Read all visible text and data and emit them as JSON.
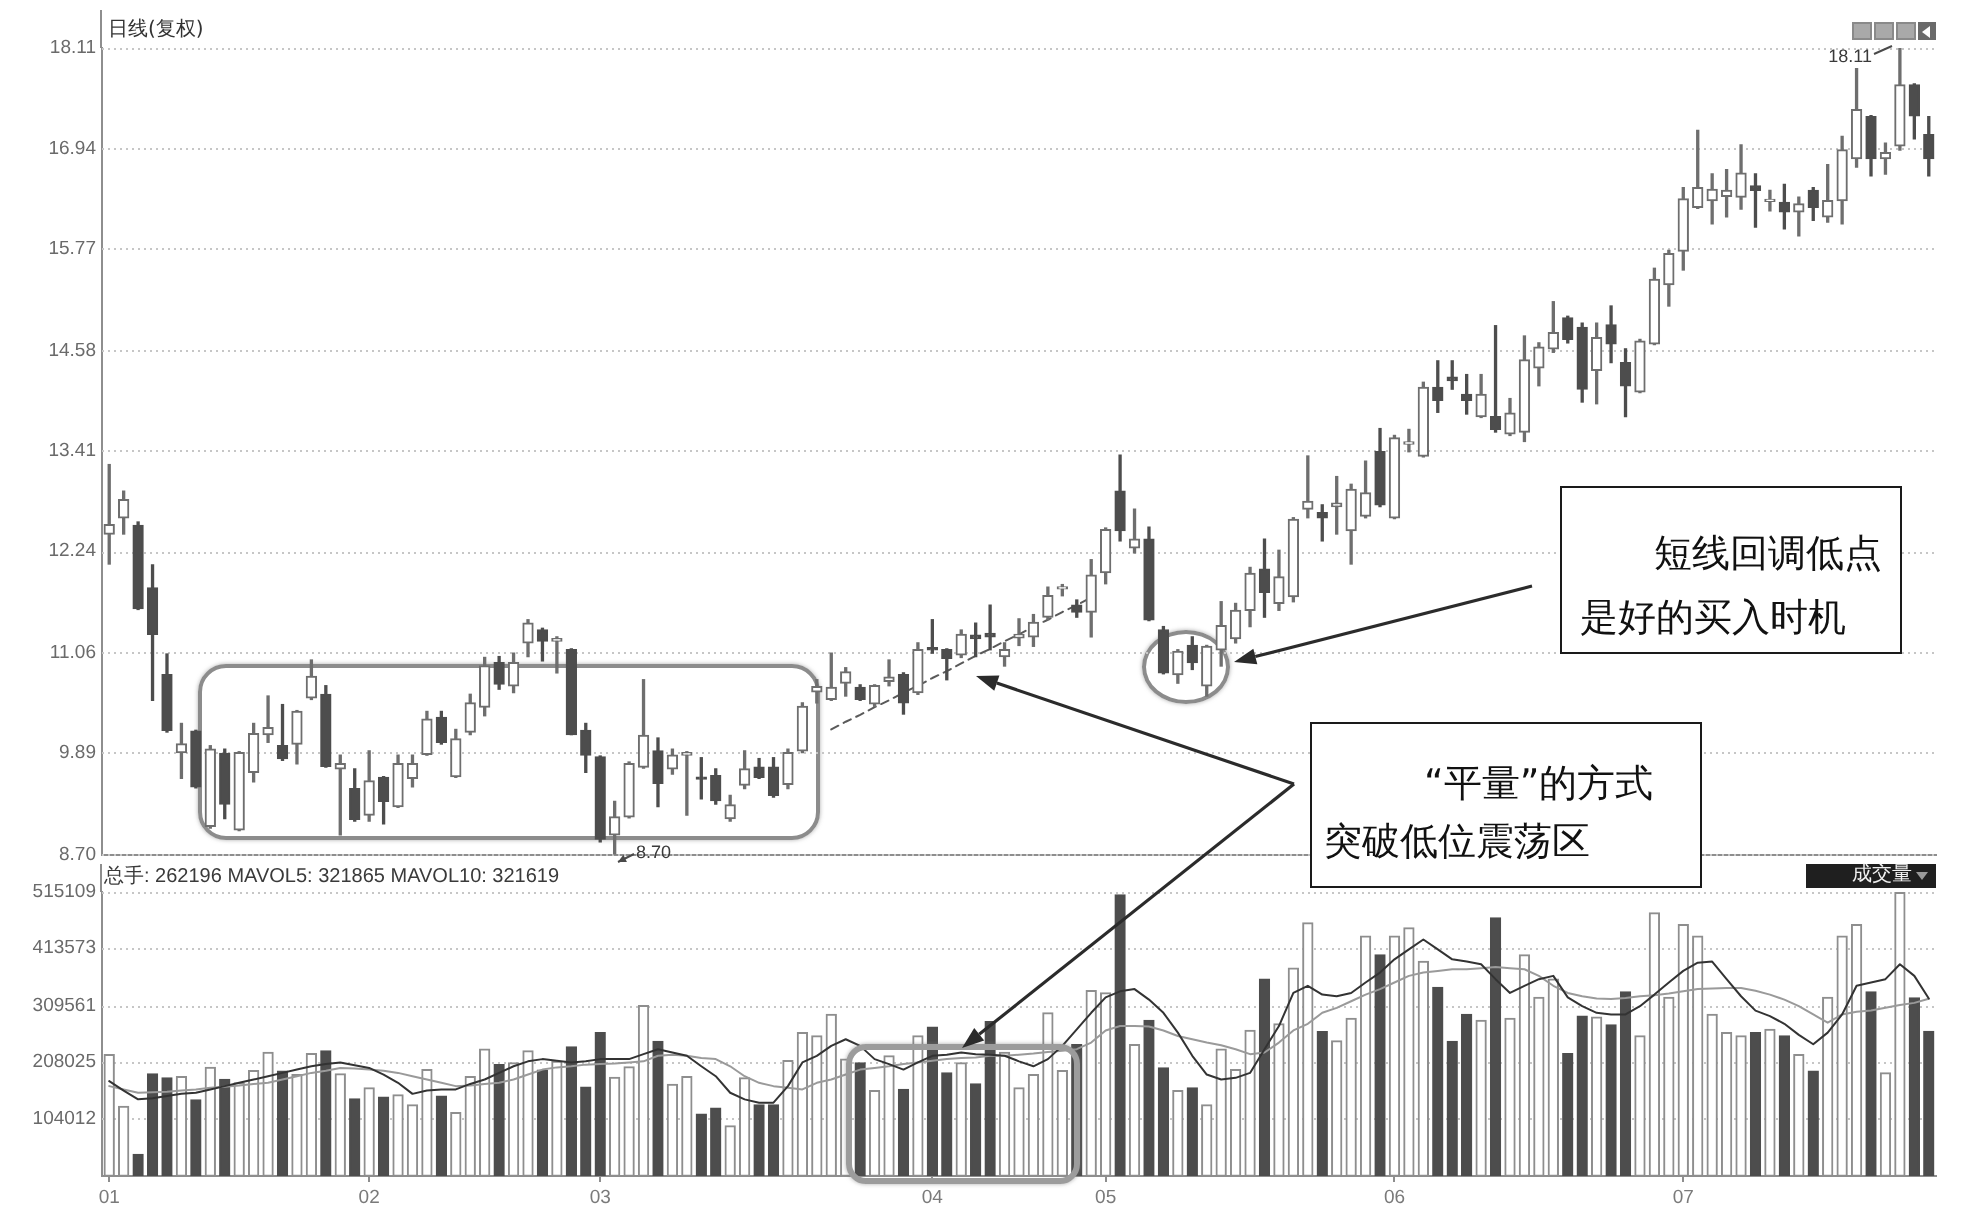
{
  "chart_data": [
    {
      "type": "candlestick",
      "title": "日线(复权)",
      "categories": [
        "01",
        null,
        null,
        null,
        null,
        null,
        null,
        null,
        null,
        null,
        null,
        null,
        null,
        null,
        null,
        null,
        null,
        null,
        "02",
        null,
        null,
        null,
        null,
        null,
        null,
        null,
        null,
        null,
        null,
        null,
        null,
        null,
        null,
        null,
        "03",
        null,
        null,
        null,
        null,
        null,
        null,
        null,
        null,
        null,
        null,
        null,
        null,
        null,
        null,
        null,
        null,
        null,
        null,
        null,
        null,
        null,
        null,
        "04",
        null,
        null,
        null,
        null,
        null,
        null,
        null,
        null,
        null,
        null,
        null,
        "05",
        null,
        null,
        null,
        null,
        null,
        null,
        null,
        null,
        null,
        null,
        null,
        null,
        null,
        null,
        null,
        null,
        null,
        null,
        null,
        "06",
        null,
        null,
        null,
        null,
        null,
        null,
        null,
        null,
        null,
        null,
        null,
        null,
        null,
        null,
        null,
        null,
        null,
        null,
        null,
        "07",
        null,
        null,
        null,
        null,
        null,
        null,
        null,
        null,
        null,
        null,
        null,
        null,
        null,
        null,
        null,
        null,
        null
      ],
      "ohlc": [
        [
          12.44,
          13.25,
          12.09,
          12.55
        ],
        [
          12.63,
          12.94,
          12.44,
          12.84
        ],
        [
          12.54,
          12.58,
          11.56,
          11.57
        ],
        [
          11.81,
          12.08,
          10.5,
          11.27
        ],
        [
          10.8,
          11.04,
          10.13,
          10.15
        ],
        [
          9.89,
          10.23,
          9.59,
          9.99
        ],
        [
          10.14,
          10.15,
          9.48,
          9.49
        ],
        [
          9.03,
          9.97,
          9.01,
          9.93
        ],
        [
          9.88,
          9.93,
          9.12,
          9.29
        ],
        [
          8.99,
          9.9,
          8.98,
          9.89
        ],
        [
          9.66,
          10.23,
          9.55,
          10.11
        ],
        [
          10.1,
          10.55,
          10.01,
          10.18
        ],
        [
          9.97,
          10.45,
          9.8,
          9.82
        ],
        [
          9.99,
          10.38,
          9.76,
          10.37
        ],
        [
          10.53,
          10.97,
          10.51,
          10.78
        ],
        [
          10.57,
          10.67,
          9.72,
          9.73
        ],
        [
          9.7,
          9.86,
          8.93,
          9.76
        ],
        [
          9.47,
          9.7,
          9.09,
          9.11
        ],
        [
          9.16,
          9.91,
          9.09,
          9.56
        ],
        [
          9.6,
          9.61,
          9.06,
          9.32
        ],
        [
          9.26,
          9.86,
          9.25,
          9.76
        ],
        [
          9.59,
          9.86,
          9.49,
          9.76
        ],
        [
          9.87,
          10.37,
          9.86,
          10.28
        ],
        [
          10.3,
          10.37,
          9.99,
          10.01
        ],
        [
          9.61,
          10.16,
          9.6,
          10.05
        ],
        [
          10.13,
          10.57,
          10.1,
          10.47
        ],
        [
          10.42,
          11.0,
          10.32,
          10.9
        ],
        [
          10.94,
          11.01,
          10.63,
          10.69
        ],
        [
          10.67,
          11.05,
          10.59,
          10.94
        ],
        [
          11.17,
          11.44,
          11.01,
          11.4
        ],
        [
          11.32,
          11.34,
          10.96,
          11.19
        ],
        [
          11.19,
          11.24,
          10.82,
          11.22
        ],
        [
          11.09,
          11.1,
          10.1,
          10.1
        ],
        [
          10.15,
          10.23,
          9.66,
          9.86
        ],
        [
          9.84,
          9.85,
          8.85,
          8.88
        ],
        [
          8.93,
          9.32,
          8.7,
          9.14
        ],
        [
          9.14,
          9.78,
          9.13,
          9.76
        ],
        [
          9.72,
          10.74,
          9.71,
          10.09
        ],
        [
          9.91,
          10.06,
          9.26,
          9.53
        ],
        [
          9.7,
          9.93,
          9.64,
          9.86
        ],
        [
          9.86,
          9.9,
          9.16,
          9.89
        ],
        [
          9.6,
          9.83,
          9.35,
          9.58
        ],
        [
          9.62,
          9.7,
          9.29,
          9.33
        ],
        [
          9.12,
          9.39,
          9.09,
          9.28
        ],
        [
          9.51,
          9.91,
          9.47,
          9.7
        ],
        [
          9.72,
          9.82,
          9.59,
          9.6
        ],
        [
          9.72,
          9.83,
          9.37,
          9.39
        ],
        [
          9.52,
          9.93,
          9.47,
          9.89
        ],
        [
          9.91,
          10.47,
          9.89,
          10.43
        ],
        [
          10.6,
          10.74,
          10.47,
          10.66
        ],
        [
          10.51,
          11.05,
          10.5,
          10.65
        ],
        [
          10.7,
          10.88,
          10.55,
          10.83
        ],
        [
          10.65,
          10.68,
          10.5,
          10.51
        ],
        [
          10.46,
          10.68,
          10.43,
          10.67
        ],
        [
          10.72,
          10.97,
          10.67,
          10.77
        ],
        [
          10.8,
          10.82,
          10.34,
          10.47
        ],
        [
          10.59,
          11.17,
          10.57,
          11.09
        ],
        [
          11.1,
          11.44,
          11.05,
          11.09
        ],
        [
          11.09,
          11.1,
          10.74,
          10.99
        ],
        [
          11.03,
          11.32,
          11.0,
          11.27
        ],
        [
          11.26,
          11.4,
          11.01,
          11.22
        ],
        [
          11.28,
          11.61,
          11.09,
          11.24
        ],
        [
          11.01,
          11.17,
          10.9,
          11.09
        ],
        [
          11.23,
          11.45,
          11.14,
          11.27
        ],
        [
          11.24,
          11.5,
          11.13,
          11.41
        ],
        [
          11.47,
          11.82,
          11.44,
          11.72
        ],
        [
          11.8,
          11.85,
          11.72,
          11.82
        ],
        [
          11.61,
          11.67,
          11.47,
          11.53
        ],
        [
          11.53,
          12.14,
          11.24,
          11.96
        ],
        [
          11.99,
          12.51,
          11.86,
          12.49
        ],
        [
          12.94,
          13.36,
          12.36,
          12.48
        ],
        [
          12.28,
          12.73,
          12.22,
          12.38
        ],
        [
          12.38,
          12.52,
          11.43,
          11.44
        ],
        [
          11.32,
          11.36,
          10.81,
          10.82
        ],
        [
          10.8,
          11.09,
          10.7,
          11.07
        ],
        [
          11.14,
          11.24,
          10.86,
          10.94
        ],
        [
          10.67,
          11.14,
          10.55,
          11.13
        ],
        [
          11.09,
          11.65,
          10.9,
          11.37
        ],
        [
          11.22,
          11.63,
          11.17,
          11.55
        ],
        [
          11.55,
          12.05,
          11.36,
          11.98
        ],
        [
          12.03,
          12.38,
          11.47,
          11.76
        ],
        [
          11.63,
          12.25,
          11.55,
          11.94
        ],
        [
          11.71,
          12.63,
          11.65,
          12.61
        ],
        [
          12.73,
          13.35,
          12.63,
          12.82
        ],
        [
          12.69,
          12.78,
          12.36,
          12.63
        ],
        [
          12.76,
          13.11,
          12.44,
          12.8
        ],
        [
          12.48,
          13.02,
          12.09,
          12.96
        ],
        [
          12.65,
          13.29,
          12.63,
          12.92
        ],
        [
          13.4,
          13.67,
          12.76,
          12.78
        ],
        [
          12.63,
          13.59,
          12.62,
          13.56
        ],
        [
          13.49,
          13.66,
          13.4,
          13.51
        ],
        [
          13.35,
          14.21,
          13.34,
          14.15
        ],
        [
          14.15,
          14.46,
          13.86,
          14.0
        ],
        [
          14.27,
          14.46,
          14.13,
          14.23
        ],
        [
          14.07,
          14.3,
          13.84,
          14.0
        ],
        [
          13.81,
          14.3,
          13.8,
          14.07
        ],
        [
          13.81,
          14.87,
          13.63,
          13.66
        ],
        [
          13.61,
          14.02,
          13.59,
          13.85
        ],
        [
          13.63,
          14.75,
          13.52,
          14.47
        ],
        [
          14.38,
          14.67,
          14.17,
          14.62
        ],
        [
          14.6,
          15.15,
          14.56,
          14.79
        ],
        [
          14.96,
          14.98,
          14.67,
          14.71
        ],
        [
          14.85,
          14.9,
          13.98,
          14.13
        ],
        [
          14.35,
          14.9,
          13.96,
          14.73
        ],
        [
          14.88,
          15.1,
          14.44,
          14.66
        ],
        [
          14.44,
          14.6,
          13.81,
          14.17
        ],
        [
          14.1,
          14.71,
          14.09,
          14.69
        ],
        [
          14.66,
          15.54,
          14.65,
          15.41
        ],
        [
          15.35,
          15.75,
          15.1,
          15.71
        ],
        [
          15.74,
          16.48,
          15.52,
          16.35
        ],
        [
          16.25,
          17.15,
          16.24,
          16.48
        ],
        [
          16.33,
          16.64,
          16.06,
          16.46
        ],
        [
          16.38,
          16.69,
          16.14,
          16.45
        ],
        [
          16.37,
          16.98,
          16.23,
          16.65
        ],
        [
          16.5,
          16.64,
          16.02,
          16.45
        ],
        [
          16.32,
          16.45,
          16.21,
          16.34
        ],
        [
          16.31,
          16.52,
          16.0,
          16.2
        ],
        [
          16.2,
          16.37,
          15.92,
          16.29
        ],
        [
          16.45,
          16.48,
          16.1,
          16.25
        ],
        [
          16.14,
          16.75,
          16.08,
          16.33
        ],
        [
          16.33,
          17.08,
          16.06,
          16.92
        ],
        [
          16.82,
          17.87,
          16.72,
          17.39
        ],
        [
          17.31,
          17.32,
          16.62,
          16.82
        ],
        [
          16.82,
          17.0,
          16.64,
          16.89
        ],
        [
          16.97,
          18.11,
          16.92,
          17.68
        ],
        [
          17.68,
          17.69,
          17.05,
          17.32
        ],
        [
          17.1,
          17.31,
          16.62,
          16.82
        ]
      ],
      "series": [
        {
          "type": "line",
          "line_style": "dashed",
          "color": "#5a5a5a",
          "values": [
            null,
            null,
            null,
            null,
            null,
            null,
            null,
            null,
            null,
            null,
            null,
            null,
            null,
            null,
            null,
            null,
            null,
            null,
            null,
            null,
            null,
            null,
            null,
            null,
            null,
            null,
            null,
            null,
            null,
            null,
            null,
            null,
            null,
            null,
            null,
            null,
            null,
            null,
            null,
            null,
            null,
            null,
            null,
            null,
            null,
            null,
            null,
            null,
            null,
            null,
            10.16,
            10.25,
            10.33,
            10.42,
            10.5,
            10.59,
            10.67,
            10.76,
            10.84,
            10.93,
            11.02,
            11.1,
            11.19,
            11.27,
            11.36,
            11.44,
            11.53,
            11.61,
            11.7,
            null,
            null,
            null,
            null,
            null,
            null,
            null,
            null,
            null,
            null,
            null,
            null,
            null,
            null,
            null,
            null,
            null,
            null,
            null,
            null,
            null,
            null,
            null,
            null,
            null,
            null,
            null,
            null,
            null,
            null,
            null,
            null,
            null,
            null,
            null,
            null,
            null,
            null,
            null,
            null,
            null,
            null,
            null,
            null,
            null,
            null,
            null,
            null,
            null,
            null,
            null,
            null,
            null,
            null,
            null,
            null,
            null,
            null
          ]
        }
      ],
      "ylim": [
        8.7,
        18.11
      ],
      "yticks": [
        {
          "value": 8.7,
          "label": "8.70"
        },
        9.89,
        11.06,
        12.24,
        13.41,
        14.58,
        15.77,
        16.94,
        18.11
      ],
      "grid": "y",
      "tick_labels": "y",
      "annotations": [
        "18.11",
        "8.70",
        "短线回调低点是好的买入时机",
        "“平量”的方式突破低位震荡区"
      ]
    },
    {
      "type": "bar",
      "categories": [
        "01",
        null,
        null,
        null,
        null,
        null,
        null,
        null,
        null,
        null,
        null,
        null,
        null,
        null,
        null,
        null,
        null,
        null,
        "02",
        null,
        null,
        null,
        null,
        null,
        null,
        null,
        null,
        null,
        null,
        null,
        null,
        null,
        null,
        null,
        "03",
        null,
        null,
        null,
        null,
        null,
        null,
        null,
        null,
        null,
        null,
        null,
        null,
        null,
        null,
        null,
        null,
        null,
        null,
        null,
        null,
        null,
        null,
        "04",
        null,
        null,
        null,
        null,
        null,
        null,
        null,
        null,
        null,
        null,
        null,
        "05",
        null,
        null,
        null,
        null,
        null,
        null,
        null,
        null,
        null,
        null,
        null,
        null,
        null,
        null,
        null,
        null,
        null,
        null,
        null,
        "06",
        null,
        null,
        null,
        null,
        null,
        null,
        null,
        null,
        null,
        null,
        null,
        null,
        null,
        null,
        null,
        null,
        null,
        null,
        null,
        "07",
        null,
        null,
        null,
        null,
        null,
        null,
        null,
        null,
        null,
        null,
        null,
        null,
        null,
        null,
        null,
        null,
        null
      ],
      "series": [
        {
          "values": [
            220000,
            126000,
            39000,
            185000,
            178000,
            180000,
            138000,
            197000,
            175000,
            169000,
            191000,
            224000,
            190000,
            184000,
            222000,
            227000,
            185000,
            140000,
            160000,
            143000,
            147000,
            129000,
            193000,
            145000,
            115000,
            180000,
            230000,
            202000,
            205000,
            227000,
            192000,
            208000,
            234000,
            161000,
            260000,
            179000,
            198000,
            309000,
            244000,
            166000,
            180000,
            112000,
            123000,
            91000,
            178000,
            129000,
            129000,
            209000,
            260000,
            254000,
            293000,
            212000,
            205000,
            155000,
            218000,
            157000,
            254000,
            270000,
            187000,
            205000,
            167000,
            280000,
            224000,
            160000,
            184000,
            296000,
            191000,
            238000,
            336000,
            332000,
            510000,
            238000,
            282000,
            196000,
            155000,
            160000,
            129000,
            230000,
            193000,
            264000,
            357000,
            276000,
            377000,
            459000,
            262000,
            245000,
            286000,
            435000,
            401000,
            435000,
            450000,
            389000,
            342000,
            244000,
            293000,
            282000,
            468000,
            286000,
            401000,
            324000,
            357000,
            222000,
            290000,
            288000,
            274000,
            334000,
            254000,
            477000,
            324000,
            456000,
            435000,
            293000,
            260000,
            254000,
            260000,
            266000,
            254000,
            220000,
            190000,
            324000,
            435000,
            456000,
            334000,
            187000,
            514000,
            323000,
            262196
          ],
          "colors": [
            "#ffffff",
            "#ffffff",
            "#4d4d4d",
            "#4d4d4d",
            "#4d4d4d",
            "#ffffff",
            "#4d4d4d",
            "#ffffff",
            "#4d4d4d",
            "#ffffff",
            "#ffffff",
            "#ffffff",
            "#4d4d4d",
            "#ffffff",
            "#ffffff",
            "#4d4d4d",
            "#ffffff",
            "#4d4d4d",
            "#ffffff",
            "#4d4d4d",
            "#ffffff",
            "#ffffff",
            "#ffffff",
            "#4d4d4d",
            "#ffffff",
            "#ffffff",
            "#ffffff",
            "#4d4d4d",
            "#ffffff",
            "#ffffff",
            "#4d4d4d",
            "#ffffff",
            "#4d4d4d",
            "#4d4d4d",
            "#4d4d4d",
            "#ffffff",
            "#ffffff",
            "#ffffff",
            "#4d4d4d",
            "#ffffff",
            "#ffffff",
            "#4d4d4d",
            "#4d4d4d",
            "#ffffff",
            "#ffffff",
            "#4d4d4d",
            "#4d4d4d",
            "#ffffff",
            "#ffffff",
            "#ffffff",
            "#ffffff",
            "#ffffff",
            "#4d4d4d",
            "#ffffff",
            "#ffffff",
            "#4d4d4d",
            "#ffffff",
            "#4d4d4d",
            "#4d4d4d",
            "#ffffff",
            "#4d4d4d",
            "#4d4d4d",
            "#ffffff",
            "#ffffff",
            "#ffffff",
            "#ffffff",
            "#ffffff",
            "#4d4d4d",
            "#ffffff",
            "#ffffff",
            "#4d4d4d",
            "#ffffff",
            "#4d4d4d",
            "#4d4d4d",
            "#ffffff",
            "#4d4d4d",
            "#ffffff",
            "#ffffff",
            "#ffffff",
            "#ffffff",
            "#4d4d4d",
            "#ffffff",
            "#ffffff",
            "#ffffff",
            "#4d4d4d",
            "#ffffff",
            "#ffffff",
            "#ffffff",
            "#4d4d4d",
            "#ffffff",
            "#ffffff",
            "#ffffff",
            "#4d4d4d",
            "#4d4d4d",
            "#4d4d4d",
            "#ffffff",
            "#4d4d4d",
            "#ffffff",
            "#ffffff",
            "#ffffff",
            "#ffffff",
            "#4d4d4d",
            "#4d4d4d",
            "#ffffff",
            "#4d4d4d",
            "#4d4d4d",
            "#ffffff",
            "#ffffff",
            "#ffffff",
            "#ffffff",
            "#ffffff",
            "#ffffff",
            "#ffffff",
            "#ffffff",
            "#4d4d4d",
            "#ffffff",
            "#4d4d4d",
            "#ffffff",
            "#4d4d4d",
            "#ffffff",
            "#ffffff",
            "#ffffff",
            "#4d4d4d",
            "#ffffff",
            "#ffffff",
            "#4d4d4d",
            "#4d4d4d"
          ]
        },
        {
          "type": "line",
          "color": "#333333",
          "values": [
            172000,
            155000,
            139000,
            141000,
            145000,
            149000,
            151000,
            157000,
            163000,
            169000,
            175000,
            181000,
            187000,
            193000,
            199000,
            203000,
            206000,
            201000,
            196000,
            184000,
            169000,
            149000,
            155000,
            157000,
            157000,
            167000,
            175000,
            187000,
            199000,
            208000,
            212000,
            209000,
            206000,
            208000,
            212000,
            212000,
            212000,
            221000,
            230000,
            224000,
            218000,
            199000,
            181000,
            151000,
            139000,
            133000,
            133000,
            163000,
            206000,
            218000,
            236000,
            248000,
            236000,
            212000,
            203000,
            193000,
            206000,
            218000,
            220000,
            224000,
            221000,
            220000,
            218000,
            208000,
            199000,
            212000,
            236000,
            266000,
            296000,
            324000,
            335000,
            339000,
            320000,
            296000,
            260000,
            218000,
            184000,
            175000,
            178000,
            187000,
            230000,
            272000,
            332000,
            345000,
            329000,
            326000,
            332000,
            351000,
            369000,
            393000,
            411000,
            429000,
            411000,
            393000,
            389000,
            384000,
            357000,
            332000,
            345000,
            357000,
            363000,
            324000,
            308000,
            296000,
            293000,
            293000,
            308000,
            329000,
            351000,
            372000,
            387000,
            389000,
            357000,
            326000,
            300000,
            290000,
            276000,
            256000,
            239000,
            260000,
            293000,
            345000,
            351000,
            357000,
            384000,
            363000,
            321865
          ]
        },
        {
          "type": "line",
          "color": "#9a9a9a",
          "values": [
            163000,
            157000,
            151000,
            152000,
            153000,
            155000,
            157000,
            160000,
            162000,
            164000,
            167000,
            169000,
            175000,
            181000,
            187000,
            191000,
            196000,
            195000,
            193000,
            191000,
            187000,
            181000,
            175000,
            169000,
            163000,
            164000,
            167000,
            169000,
            175000,
            184000,
            193000,
            197000,
            199000,
            202000,
            203000,
            204000,
            206000,
            208000,
            218000,
            220000,
            218000,
            214000,
            212000,
            199000,
            181000,
            169000,
            163000,
            160000,
            157000,
            169000,
            175000,
            184000,
            193000,
            196000,
            199000,
            203000,
            206000,
            209000,
            212000,
            214000,
            215000,
            218000,
            218000,
            220000,
            222000,
            225000,
            227000,
            230000,
            242000,
            264000,
            272000,
            272000,
            271000,
            264000,
            254000,
            248000,
            242000,
            237000,
            230000,
            221000,
            224000,
            242000,
            264000,
            276000,
            296000,
            305000,
            317000,
            329000,
            339000,
            351000,
            363000,
            369000,
            372000,
            375000,
            375000,
            377000,
            379000,
            377000,
            375000,
            363000,
            345000,
            332000,
            326000,
            322000,
            321000,
            323000,
            326000,
            328000,
            331000,
            335000,
            339000,
            340000,
            341000,
            341000,
            336000,
            329000,
            320000,
            308000,
            293000,
            278000,
            293000,
            298000,
            300000,
            305000,
            310000,
            314000,
            321619
          ]
        }
      ],
      "ylim": [
        0,
        515109
      ],
      "yticks": [
        104012,
        208025,
        309561,
        413573,
        515109
      ],
      "grid": "y",
      "annotations": [
        "总手: 262196 MAVOL5: 321865 MAVOL10: 321619",
        "成交量"
      ]
    }
  ]
}
